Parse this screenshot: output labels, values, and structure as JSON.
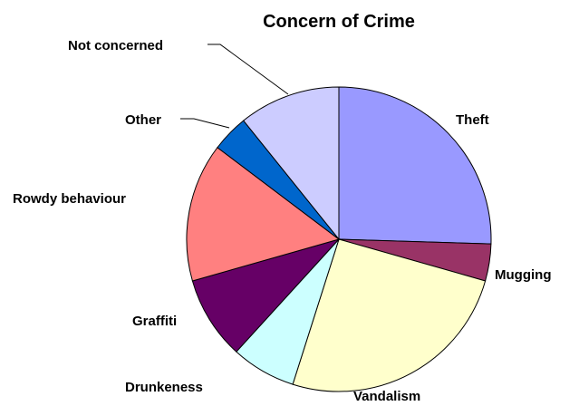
{
  "chart_data": {
    "type": "pie",
    "title": "Concern of Crime",
    "slices": [
      {
        "label": "Theft",
        "value": 26,
        "color": "#9999ff"
      },
      {
        "label": "Mugging",
        "value": 4,
        "color": "#993366"
      },
      {
        "label": "Vandalism",
        "value": 26,
        "color": "#ffffcc"
      },
      {
        "label": "Drunkeness",
        "value": 7,
        "color": "#ccffff"
      },
      {
        "label": "Graffiti",
        "value": 9,
        "color": "#660066"
      },
      {
        "label": "Rowdy behaviour",
        "value": 15,
        "color": "#ff8080"
      },
      {
        "label": "Other",
        "value": 4,
        "color": "#0066cc"
      },
      {
        "label": "Not concerned",
        "value": 11,
        "color": "#ccccff"
      }
    ],
    "start": "12 o'clock",
    "direction": "clockwise",
    "legend": "none"
  }
}
